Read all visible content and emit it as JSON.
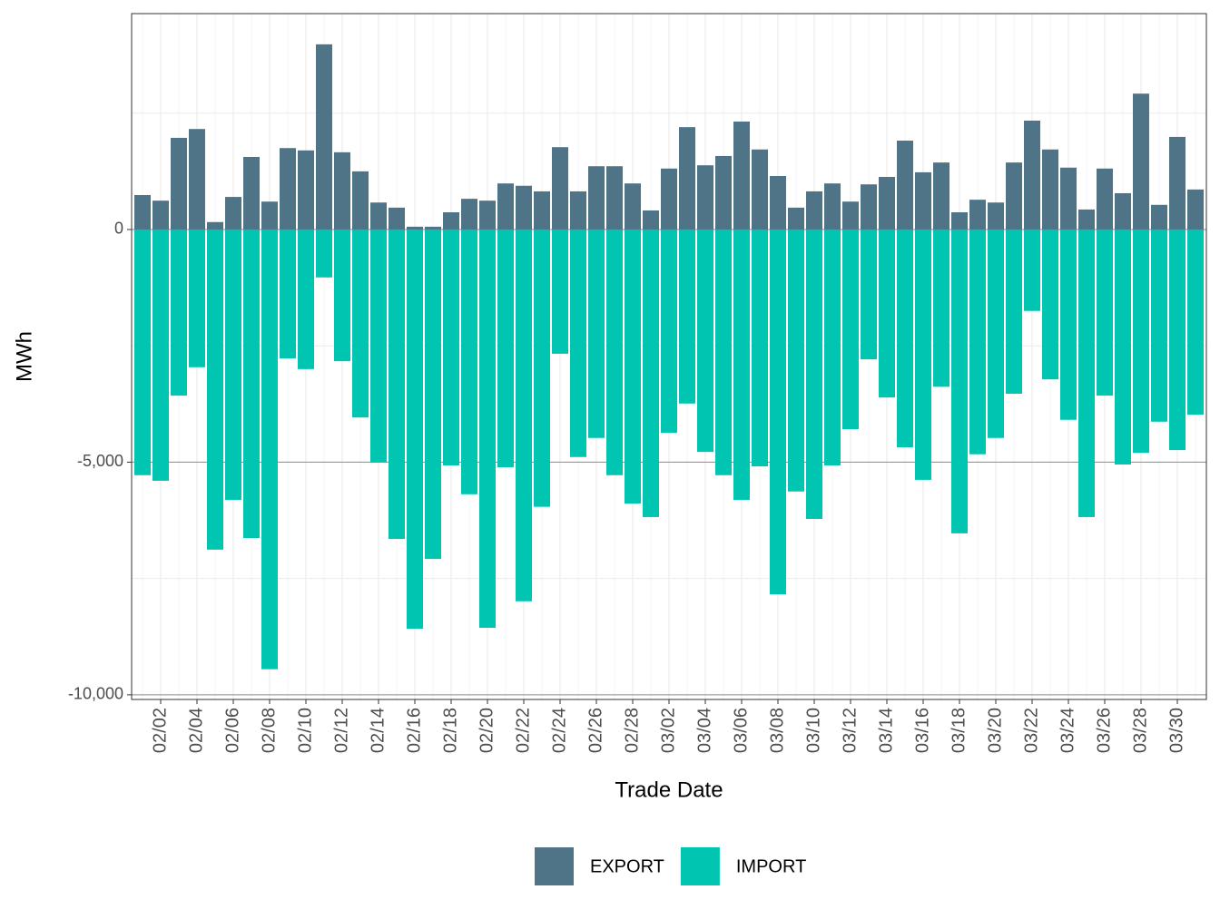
{
  "chart_data": {
    "type": "bar",
    "stacked": true,
    "x_label": "Trade Date",
    "y_label": "MWh",
    "categories": [
      null,
      "02/02",
      null,
      "02/04",
      null,
      "02/06",
      null,
      "02/08",
      null,
      "02/10",
      null,
      "02/12",
      null,
      "02/14",
      null,
      "02/16",
      null,
      "02/18",
      null,
      "02/20",
      null,
      "02/22",
      null,
      "02/24",
      null,
      "02/26",
      null,
      "02/28",
      null,
      "03/02",
      null,
      "03/04",
      null,
      "03/06",
      null,
      "03/08",
      null,
      "03/10",
      null,
      "03/12",
      null,
      "03/14",
      null,
      "03/16",
      null,
      "03/18",
      null,
      "03/20",
      null,
      "03/22",
      null,
      "03/24",
      null,
      "03/26",
      null,
      "03/28",
      null,
      "03/30",
      null
    ],
    "series": [
      {
        "name": "EXPORT",
        "color": "#4f7387",
        "values": [
          740,
          620,
          1970,
          2160,
          160,
          700,
          1560,
          600,
          1750,
          1700,
          3980,
          1660,
          1250,
          580,
          470,
          60,
          60,
          370,
          660,
          620,
          990,
          940,
          820,
          1770,
          820,
          1360,
          1360,
          990,
          410,
          1310,
          2200,
          1380,
          1580,
          2320,
          1720,
          1150,
          470,
          820,
          990,
          600,
          970,
          1130,
          1910,
          1230,
          1440,
          370,
          640,
          580,
          1440,
          2340,
          1720,
          1330,
          430,
          1310,
          780,
          2920,
          530,
          1990,
          860
        ]
      },
      {
        "name": "IMPORT",
        "color": "#00c5b0",
        "values": [
          -5280,
          -5400,
          -3570,
          -2960,
          -6880,
          -5810,
          -6630,
          -9450,
          -2770,
          -3000,
          -1030,
          -2830,
          -4040,
          -5010,
          -6650,
          -8580,
          -7080,
          -5070,
          -5690,
          -8560,
          -5110,
          -7990,
          -5960,
          -2670,
          -4890,
          -4480,
          -5280,
          -5890,
          -6180,
          -4370,
          -3740,
          -4780,
          -5280,
          -5810,
          -5090,
          -7840,
          -5630,
          -6220,
          -5070,
          -4290,
          -2790,
          -3610,
          -4680,
          -5380,
          -3380,
          -6530,
          -4830,
          -4480,
          -3530,
          -1750,
          -3220,
          -4090,
          -6180,
          -3570,
          -5050,
          -4800,
          -4130,
          -4740,
          -3980
        ]
      }
    ],
    "ylim": [
      -10100,
      4640
    ],
    "yticks": [
      {
        "value": -10000,
        "label": "-10,000"
      },
      {
        "value": -5000,
        "label": "-5,000"
      },
      0
    ],
    "grid": true,
    "legend": "bottom"
  }
}
